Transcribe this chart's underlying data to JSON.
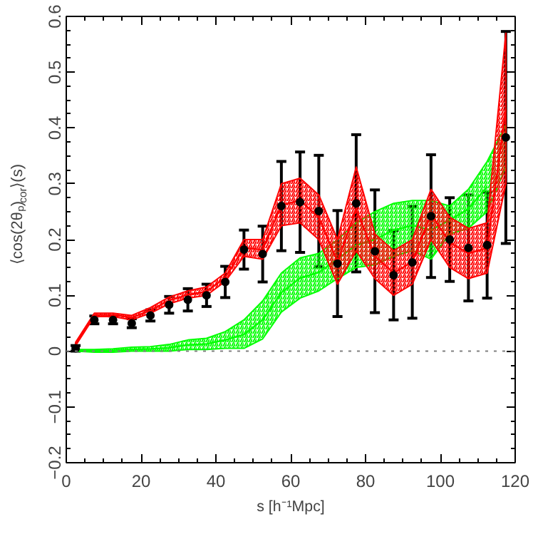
{
  "chart_data": {
    "type": "scatter",
    "xlabel": "s [h⁻¹Mpc]",
    "ylabel": "⟨cos(2θₚ)$_{cor}$⟩(s)",
    "x": [
      2.5,
      7.5,
      12.5,
      17.5,
      22.5,
      27.5,
      32.5,
      37.5,
      42.5,
      47.5,
      52.5,
      57.5,
      62.5,
      67.5,
      72.5,
      77.5,
      82.5,
      87.5,
      92.5,
      97.5,
      102.5,
      107.5,
      112.5,
      117.5
    ],
    "xlim": [
      0,
      120
    ],
    "xticks": [
      0,
      20,
      40,
      60,
      80,
      100,
      120
    ],
    "ylim": [
      -0.2,
      0.6
    ],
    "yticks": [
      {
        "value": -0.2,
        "label": "−0.2"
      },
      {
        "value": -0.1,
        "label": "−0.1"
      },
      0,
      0.1,
      0.2,
      0.3,
      0.4,
      0.5,
      0.6
    ],
    "grid": false,
    "series": [
      {
        "type": "line",
        "color": "#00ff00",
        "values": [
          0.001,
          0,
          0.001,
          0.003,
          0.004,
          0.006,
          0.011,
          0.013,
          0.02,
          0.03,
          0.056,
          0.105,
          0.131,
          0.141,
          0.165,
          0.19,
          0.2,
          0.217,
          0.225,
          0.217,
          0.235,
          0.255,
          0.295,
          null
        ],
        "lower": [
          0,
          -0.002,
          -0.002,
          0,
          0,
          0,
          0.003,
          0.003,
          0.005,
          0.005,
          0.022,
          0.07,
          0.095,
          0.108,
          0.13,
          0.15,
          0.155,
          0.17,
          0.18,
          0.165,
          0.21,
          0.22,
          0.25,
          0.33
        ],
        "upper": [
          0.003,
          0.003,
          0.004,
          0.007,
          0.008,
          0.012,
          0.02,
          0.023,
          0.035,
          0.056,
          0.09,
          0.14,
          0.167,
          0.175,
          0.2,
          0.23,
          0.25,
          0.265,
          0.27,
          0.27,
          0.26,
          0.29,
          0.34,
          0.405
        ]
      },
      {
        "type": "line",
        "color": "#ff0000",
        "values": [
          0.013,
          0.065,
          0.065,
          0.06,
          0.073,
          0.091,
          0.101,
          0.107,
          0.132,
          0.185,
          0.182,
          0.262,
          0.27,
          0.24,
          0.16,
          0.255,
          0.17,
          0.14,
          0.16,
          0.245,
          0.195,
          0.175,
          0.185,
          0.435
        ],
        "lower": [
          0.01,
          0.062,
          0.062,
          0.056,
          0.068,
          0.085,
          0.095,
          0.1,
          0.125,
          0.17,
          0.165,
          0.225,
          0.23,
          0.2,
          0.12,
          0.18,
          0.13,
          0.1,
          0.12,
          0.2,
          0.15,
          0.13,
          0.14,
          0.3
        ],
        "upper": [
          0.016,
          0.068,
          0.068,
          0.064,
          0.078,
          0.097,
          0.108,
          0.115,
          0.14,
          0.2,
          0.2,
          0.3,
          0.31,
          0.28,
          0.2,
          0.33,
          0.21,
          0.18,
          0.2,
          0.29,
          0.24,
          0.22,
          0.23,
          0.57
        ]
      },
      {
        "color": "#000000",
        "marker": "circle",
        "values": [
          0.005,
          0.056,
          0.056,
          0.05,
          0.064,
          0.083,
          0.092,
          0.1,
          0.124,
          0.182,
          0.174,
          0.26,
          0.267,
          0.251,
          0.157,
          0.265,
          0.179,
          0.136,
          0.159,
          0.242,
          0.2,
          0.185,
          0.19,
          0.383
        ],
        "errors": [
          0.005,
          0.007,
          0.007,
          0.008,
          0.01,
          0.015,
          0.02,
          0.02,
          0.028,
          0.035,
          0.05,
          0.08,
          0.09,
          0.1,
          0.095,
          0.123,
          0.11,
          0.08,
          0.1,
          0.11,
          0.075,
          0.095,
          0.095,
          0.19
        ]
      }
    ],
    "ref_lines": [
      {
        "axis": "y",
        "value": 0,
        "color": "#808080",
        "line_style": "dotted"
      }
    ]
  }
}
